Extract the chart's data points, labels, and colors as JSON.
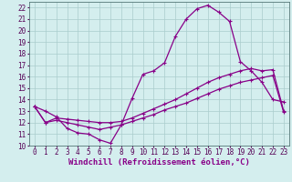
{
  "xlabel": "Windchill (Refroidissement éolien,°C)",
  "background_color": "#d4eeee",
  "line_color": "#880088",
  "grid_color": "#aacccc",
  "xlim": [
    -0.5,
    23.5
  ],
  "ylim": [
    10,
    22.5
  ],
  "xticks": [
    0,
    1,
    2,
    3,
    4,
    5,
    6,
    7,
    8,
    9,
    10,
    11,
    12,
    13,
    14,
    15,
    16,
    17,
    18,
    19,
    20,
    21,
    22,
    23
  ],
  "yticks": [
    10,
    11,
    12,
    13,
    14,
    15,
    16,
    17,
    18,
    19,
    20,
    21,
    22
  ],
  "line1_x": [
    0,
    1,
    2,
    3,
    4,
    5,
    6,
    7,
    8,
    9,
    10,
    11,
    12,
    13,
    14,
    15,
    16,
    17,
    18,
    19,
    20,
    21,
    22,
    23
  ],
  "line1_y": [
    13.4,
    13.0,
    12.5,
    11.5,
    11.1,
    11.0,
    10.5,
    10.2,
    11.8,
    14.1,
    16.2,
    16.5,
    17.2,
    19.5,
    21.0,
    21.9,
    22.2,
    21.6,
    20.8,
    17.3,
    16.5,
    15.5,
    14.0,
    13.8
  ],
  "line2_x": [
    0,
    1,
    2,
    3,
    4,
    5,
    6,
    7,
    8,
    9,
    10,
    11,
    12,
    13,
    14,
    15,
    16,
    17,
    18,
    19,
    20,
    21,
    22,
    23
  ],
  "line2_y": [
    13.4,
    12.0,
    12.4,
    12.3,
    12.2,
    12.1,
    12.0,
    12.0,
    12.1,
    12.4,
    12.8,
    13.2,
    13.6,
    14.0,
    14.5,
    15.0,
    15.5,
    15.9,
    16.2,
    16.5,
    16.7,
    16.5,
    16.6,
    13.0
  ],
  "line3_x": [
    0,
    1,
    2,
    3,
    4,
    5,
    6,
    7,
    8,
    9,
    10,
    11,
    12,
    13,
    14,
    15,
    16,
    17,
    18,
    19,
    20,
    21,
    22,
    23
  ],
  "line3_y": [
    13.4,
    12.0,
    12.2,
    12.0,
    11.8,
    11.6,
    11.4,
    11.6,
    11.8,
    12.1,
    12.4,
    12.7,
    13.1,
    13.4,
    13.7,
    14.1,
    14.5,
    14.9,
    15.2,
    15.5,
    15.7,
    15.9,
    16.1,
    12.9
  ],
  "markersize": 3.5,
  "linewidth": 0.9,
  "tick_fontsize": 5.5,
  "label_fontsize": 6.5
}
